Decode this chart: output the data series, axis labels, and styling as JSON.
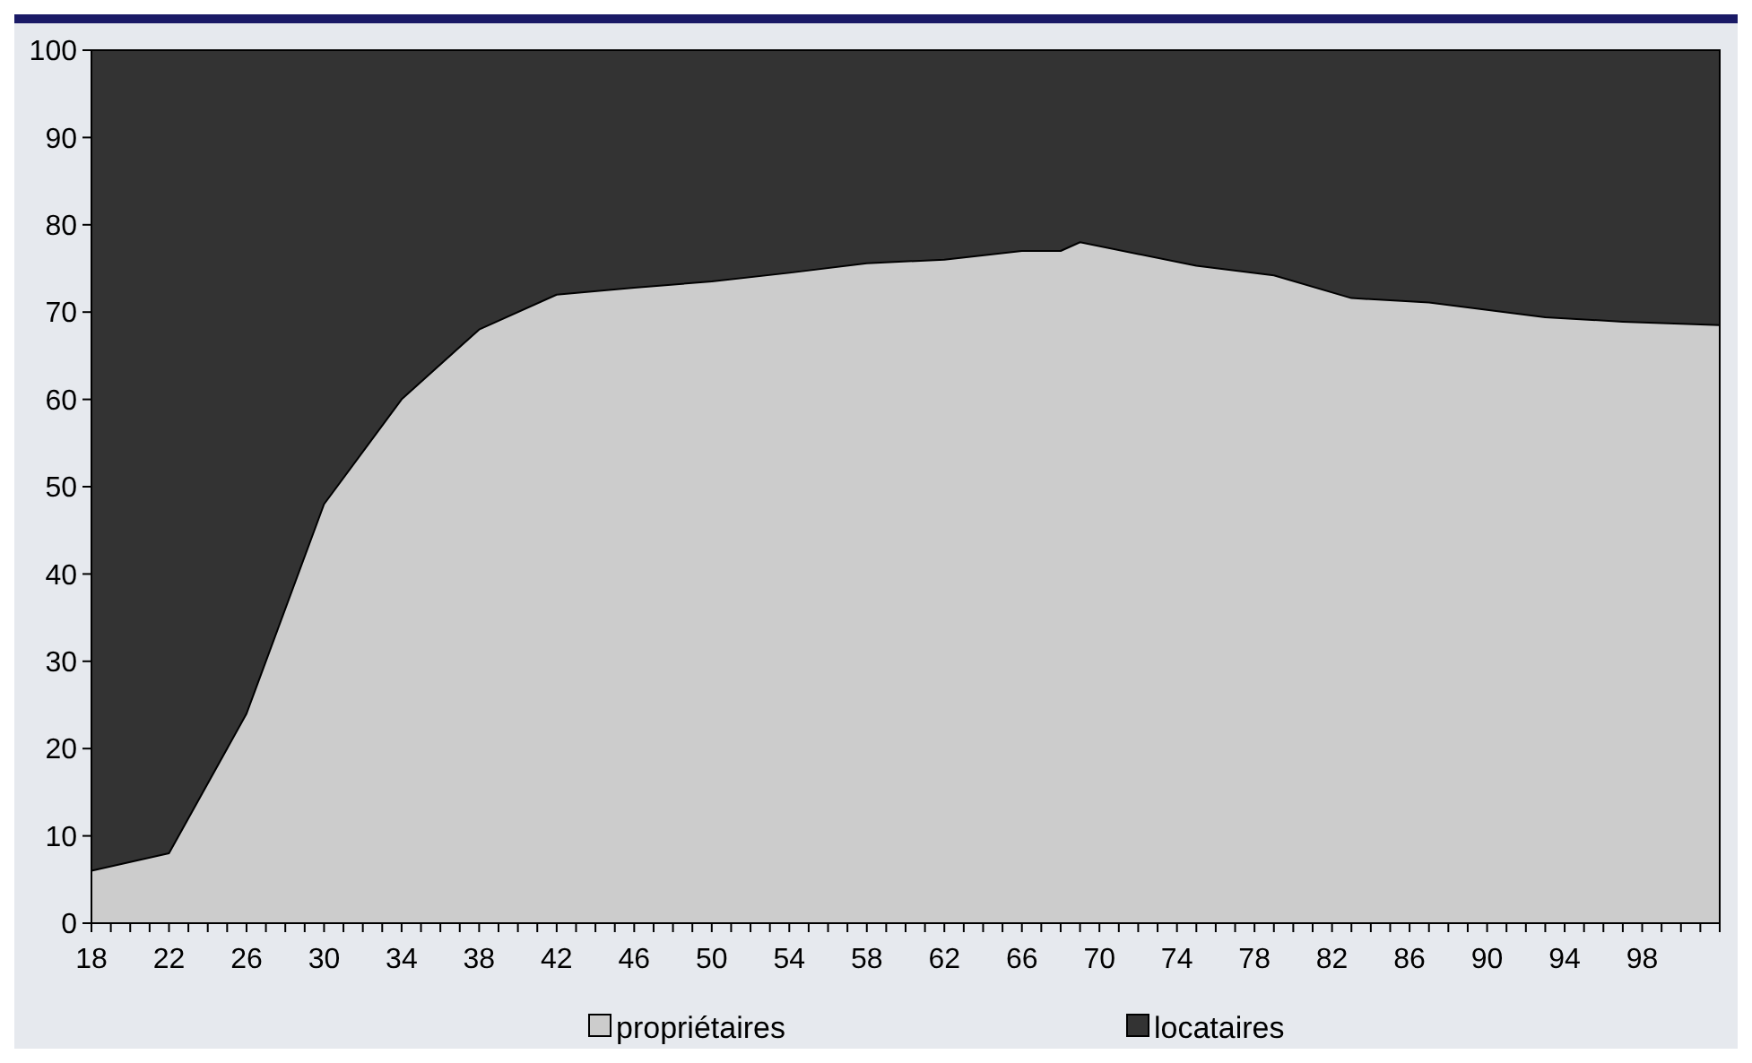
{
  "chart_data": {
    "type": "area",
    "stacked": true,
    "legend": "bottom",
    "grid": false,
    "x": [
      18,
      22,
      26,
      30,
      34,
      38,
      42,
      46,
      50,
      54,
      58,
      62,
      66,
      68,
      69,
      75,
      79,
      83,
      87,
      93,
      97,
      102
    ],
    "series": [
      {
        "name": "propriétaires",
        "color": "#cccccc",
        "values": [
          6,
          8,
          24,
          48,
          60,
          68,
          72,
          72.8,
          73.5,
          74.5,
          75.6,
          76,
          77,
          77,
          78,
          75.3,
          74.2,
          71.6,
          71.1,
          69.4,
          68.9,
          68.5
        ]
      },
      {
        "name": "locataires",
        "color": "#333333",
        "values": [
          94,
          92,
          76,
          52,
          40,
          32,
          28,
          27.2,
          26.5,
          25.5,
          24.4,
          24,
          23,
          23,
          22,
          24.7,
          25.8,
          28.4,
          28.9,
          30.6,
          31.1,
          31.5
        ]
      }
    ],
    "xlim": [
      18,
      102
    ],
    "xticks": [
      18,
      {
        "value": 19,
        "label": null
      },
      {
        "value": 20,
        "label": null
      },
      {
        "value": 21,
        "label": null
      },
      22,
      {
        "value": 23,
        "label": null
      },
      {
        "value": 24,
        "label": null
      },
      {
        "value": 25,
        "label": null
      },
      26,
      {
        "value": 27,
        "label": null
      },
      {
        "value": 28,
        "label": null
      },
      {
        "value": 29,
        "label": null
      },
      30,
      {
        "value": 31,
        "label": null
      },
      {
        "value": 32,
        "label": null
      },
      {
        "value": 33,
        "label": null
      },
      34,
      {
        "value": 35,
        "label": null
      },
      {
        "value": 36,
        "label": null
      },
      {
        "value": 37,
        "label": null
      },
      38,
      {
        "value": 39,
        "label": null
      },
      {
        "value": 40,
        "label": null
      },
      {
        "value": 41,
        "label": null
      },
      42,
      {
        "value": 43,
        "label": null
      },
      {
        "value": 44,
        "label": null
      },
      {
        "value": 45,
        "label": null
      },
      46,
      {
        "value": 47,
        "label": null
      },
      {
        "value": 48,
        "label": null
      },
      {
        "value": 49,
        "label": null
      },
      50,
      {
        "value": 51,
        "label": null
      },
      {
        "value": 52,
        "label": null
      },
      {
        "value": 53,
        "label": null
      },
      54,
      {
        "value": 55,
        "label": null
      },
      {
        "value": 56,
        "label": null
      },
      {
        "value": 57,
        "label": null
      },
      58,
      {
        "value": 59,
        "label": null
      },
      {
        "value": 60,
        "label": null
      },
      {
        "value": 61,
        "label": null
      },
      62,
      {
        "value": 63,
        "label": null
      },
      {
        "value": 64,
        "label": null
      },
      {
        "value": 65,
        "label": null
      },
      66,
      {
        "value": 67,
        "label": null
      },
      {
        "value": 68,
        "label": null
      },
      {
        "value": 69,
        "label": null
      },
      70,
      {
        "value": 71,
        "label": null
      },
      {
        "value": 72,
        "label": null
      },
      {
        "value": 73,
        "label": null
      },
      74,
      {
        "value": 75,
        "label": null
      },
      {
        "value": 76,
        "label": null
      },
      {
        "value": 77,
        "label": null
      },
      78,
      {
        "value": 79,
        "label": null
      },
      {
        "value": 80,
        "label": null
      },
      {
        "value": 81,
        "label": null
      },
      82,
      {
        "value": 83,
        "label": null
      },
      {
        "value": 84,
        "label": null
      },
      {
        "value": 85,
        "label": null
      },
      86,
      {
        "value": 87,
        "label": null
      },
      {
        "value": 88,
        "label": null
      },
      {
        "value": 89,
        "label": null
      },
      90,
      {
        "value": 91,
        "label": null
      },
      {
        "value": 92,
        "label": null
      },
      {
        "value": 93,
        "label": null
      },
      94,
      {
        "value": 95,
        "label": null
      },
      {
        "value": 96,
        "label": null
      },
      {
        "value": 97,
        "label": null
      },
      98,
      {
        "value": 99,
        "label": null
      },
      {
        "value": 100,
        "label": null
      },
      {
        "value": 101,
        "label": null
      },
      {
        "value": 102,
        "label": null
      }
    ],
    "ylim": [
      0,
      100
    ],
    "yticks": [
      0,
      10,
      20,
      30,
      40,
      50,
      60,
      70,
      80,
      90,
      100
    ]
  }
}
